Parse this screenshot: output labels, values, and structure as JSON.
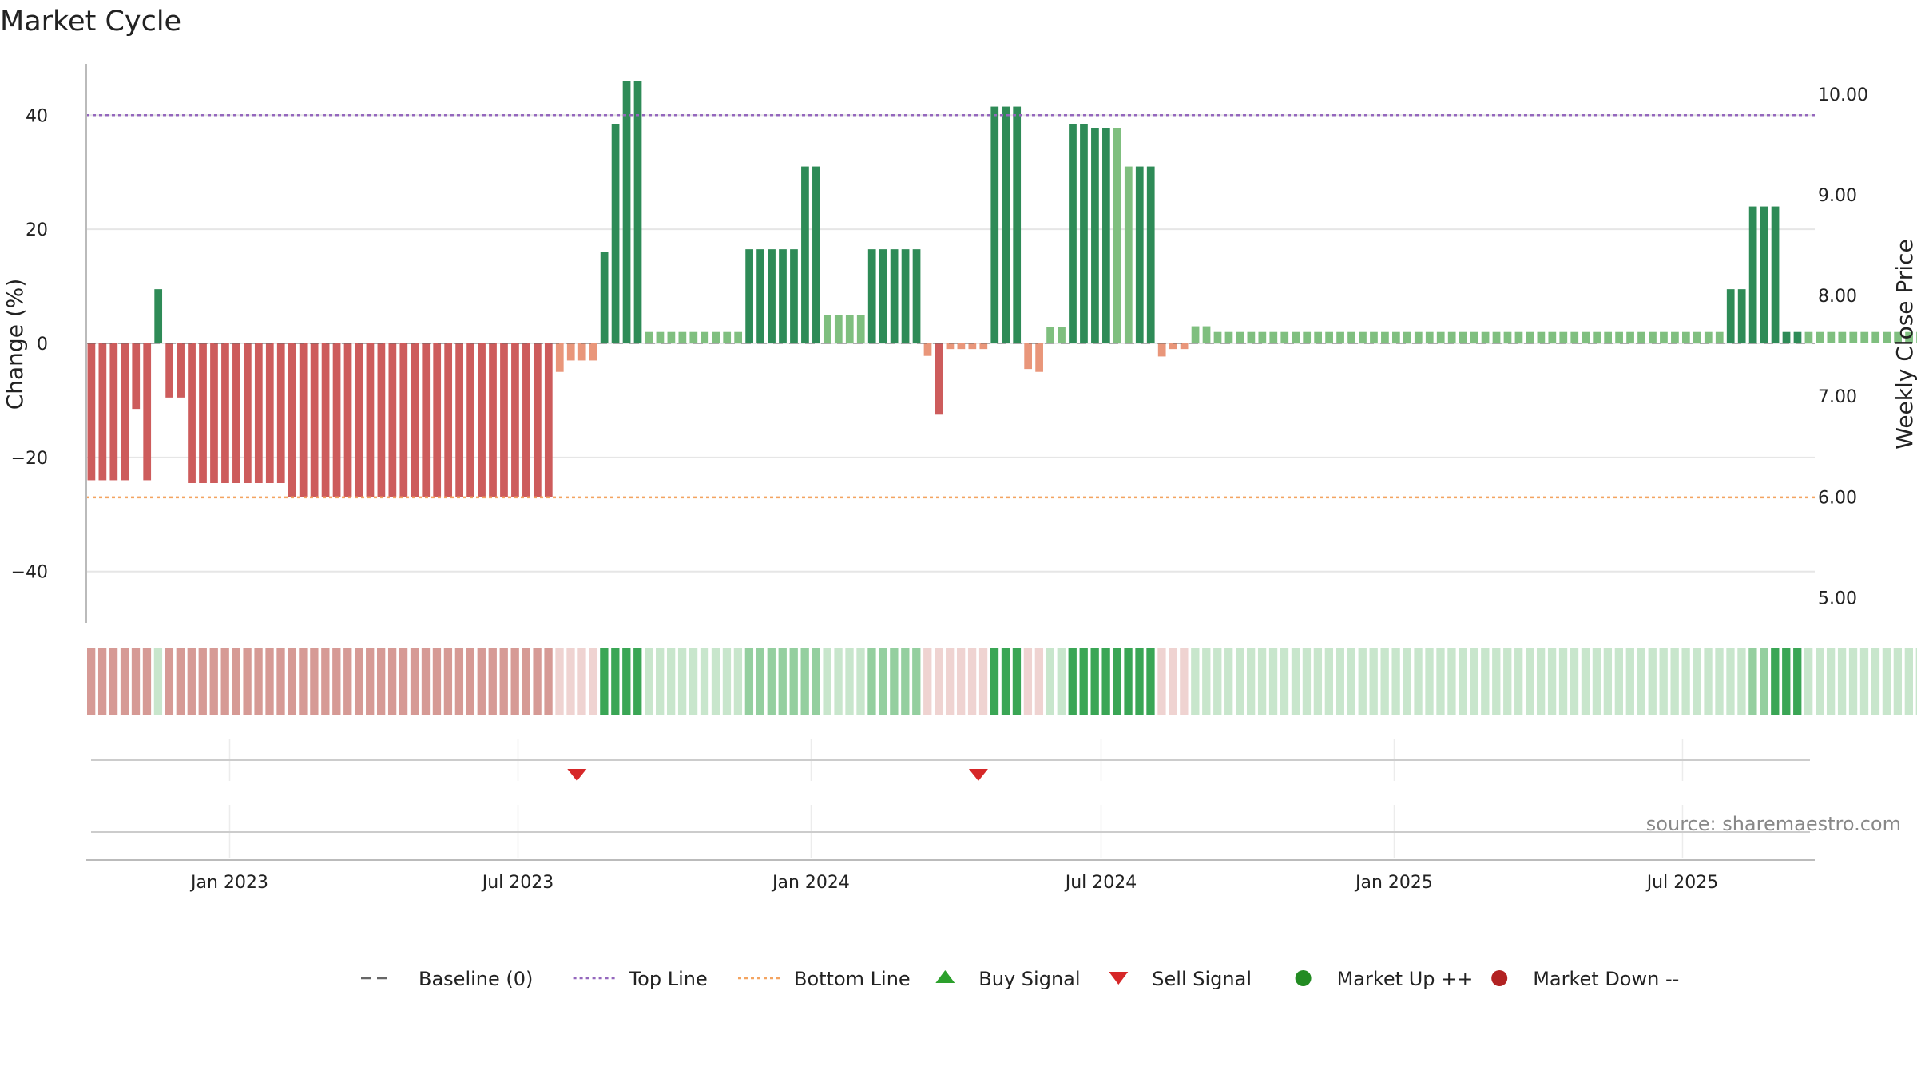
{
  "chart_data": {
    "type": "bar",
    "title": "Market Cycle",
    "ylabel": "Change (%)",
    "y2label": "Weekly Close Price",
    "ylim": [
      -49,
      49
    ],
    "y2lim": [
      4.75,
      10.3
    ],
    "yticks": [
      {
        "value": 40,
        "label": "40"
      },
      {
        "value": 20,
        "label": "20"
      },
      {
        "value": 0,
        "label": "0"
      },
      {
        "value": -20,
        "label": "−20"
      },
      {
        "value": -40,
        "label": "−40"
      }
    ],
    "y2ticks": [
      {
        "value": 10,
        "label": "10.00"
      },
      {
        "value": 9,
        "label": "9.00"
      },
      {
        "value": 8,
        "label": "8.00"
      },
      {
        "value": 7,
        "label": "7.00"
      },
      {
        "value": 6,
        "label": "6.00"
      },
      {
        "value": 5,
        "label": "5.00"
      }
    ],
    "xrange": [
      "2022-10-03",
      "2025-09-22"
    ],
    "xticks": [
      {
        "date": "2023-01-01",
        "label": "Jan 2023"
      },
      {
        "date": "2023-07-01",
        "label": "Jul 2023"
      },
      {
        "date": "2024-01-01",
        "label": "Jan 2024"
      },
      {
        "date": "2024-07-01",
        "label": "Jul 2024"
      },
      {
        "date": "2025-01-01",
        "label": "Jan 2025"
      },
      {
        "date": "2025-07-01",
        "label": "Jul 2025"
      }
    ],
    "top_line": 40,
    "bottom_line": -27,
    "baseline": 0,
    "start_date": "2022-10-03",
    "values": [
      -24,
      -24,
      -24,
      -24,
      -11.5,
      -24,
      9.5,
      -9.5,
      -9.5,
      -24.5,
      -24.5,
      -24.5,
      -24.5,
      -24.5,
      -24.5,
      -24.5,
      -24.5,
      -24.5,
      -27,
      -27,
      -27,
      -27,
      -27,
      -27,
      -27,
      -27,
      -27,
      -27,
      -27,
      -27,
      -27,
      -27,
      -27,
      -27,
      -27,
      -27,
      -27,
      -27,
      -27,
      -27,
      -27,
      -27,
      -5,
      -3,
      -3,
      -3,
      16,
      38.5,
      46,
      46,
      2,
      2,
      2,
      2,
      2,
      2,
      2,
      2,
      2,
      16.5,
      16.5,
      16.5,
      16.5,
      16.5,
      31,
      31,
      5,
      5,
      5,
      5,
      16.5,
      16.5,
      16.5,
      16.5,
      16.5,
      -2.2,
      -12.5,
      -1,
      -1,
      -1,
      -1,
      41.5,
      41.5,
      41.5,
      -4.5,
      -5,
      2.8,
      2.8,
      38.5,
      38.5,
      37.8,
      37.8,
      37.8,
      31,
      31,
      31,
      -2.3,
      -1,
      -1,
      3,
      3,
      2,
      2,
      2,
      2,
      2,
      2,
      2,
      2,
      2,
      2,
      2,
      2,
      2,
      2,
      2,
      2,
      2,
      2,
      2,
      2,
      2,
      2,
      2,
      2,
      2,
      2,
      2,
      2,
      2,
      2,
      2,
      2,
      2,
      2,
      2,
      2,
      2,
      2,
      2,
      2,
      2,
      2,
      2,
      2,
      2,
      2,
      9.5,
      9.5,
      24,
      24,
      24,
      2,
      2,
      2,
      2,
      2,
      2,
      2,
      2,
      2,
      2,
      2,
      2,
      2,
      2,
      2,
      2,
      2
    ],
    "band_levels": [
      -1,
      -1,
      -1,
      -1,
      -1,
      -1,
      1,
      -1,
      -1,
      -1,
      -1,
      -1,
      -1,
      -1,
      -1,
      -1,
      -1,
      -1,
      -1,
      -1,
      -1,
      -1,
      -1,
      -1,
      -1,
      -1,
      -1,
      -1,
      -1,
      -1,
      -1,
      -1,
      -1,
      -1,
      -1,
      -1,
      -1,
      -1,
      -1,
      -1,
      -1,
      -1,
      -2,
      -2,
      -2,
      -2,
      3,
      3,
      3,
      3,
      1,
      1,
      1,
      1,
      1,
      1,
      1,
      1,
      1,
      2,
      2,
      2,
      2,
      2,
      2,
      2,
      1,
      1,
      1,
      1,
      2,
      2,
      2,
      2,
      2,
      -2,
      -2,
      -2,
      -2,
      -2,
      -2,
      3,
      3,
      3,
      -2,
      -2,
      1,
      1,
      3,
      3,
      3,
      3,
      3,
      3,
      3,
      3,
      -2,
      -2,
      -2,
      1,
      1,
      1,
      1,
      1,
      1,
      1,
      1,
      1,
      1,
      1,
      1,
      1,
      1,
      1,
      1,
      1,
      1,
      1,
      1,
      1,
      1,
      1,
      1,
      1,
      1,
      1,
      1,
      1,
      1,
      1,
      1,
      1,
      1,
      1,
      1,
      1,
      1,
      1,
      1,
      1,
      1,
      1,
      1,
      1,
      1,
      1,
      1,
      1,
      1,
      2,
      2,
      3,
      3,
      3,
      1,
      1,
      1,
      1,
      1,
      1,
      1,
      1,
      1,
      1,
      1,
      1,
      1,
      1,
      1,
      1,
      1
    ],
    "sell_signals": [
      "2023-08-07",
      "2024-04-15"
    ],
    "buy_signals": [],
    "colors": {
      "bar_up_strong": "#2e8b57",
      "bar_up_light": "#7fbf7f",
      "bar_down_strong": "#cd5c5c",
      "bar_down_light": "#e9967a",
      "top_line": "#9467bd",
      "bottom_line": "#f4a460",
      "sell": "#d62728",
      "buy": "#2ca02c",
      "market_up": "#228b22",
      "market_down": "#b22222",
      "baseline": "#666666"
    },
    "legend": [
      {
        "kind": "dash",
        "label": "Baseline (0)"
      },
      {
        "kind": "dotted-purple",
        "label": "Top Line"
      },
      {
        "kind": "dotted-orange",
        "label": "Bottom Line"
      },
      {
        "kind": "triangle-up",
        "label": "Buy Signal"
      },
      {
        "kind": "triangle-down",
        "label": "Sell Signal"
      },
      {
        "kind": "dot-green",
        "label": "Market Up ++"
      },
      {
        "kind": "dot-red",
        "label": "Market Down --"
      }
    ],
    "legend_position": "bottom-center",
    "grid": true
  },
  "source": "source: sharemaestro.com"
}
